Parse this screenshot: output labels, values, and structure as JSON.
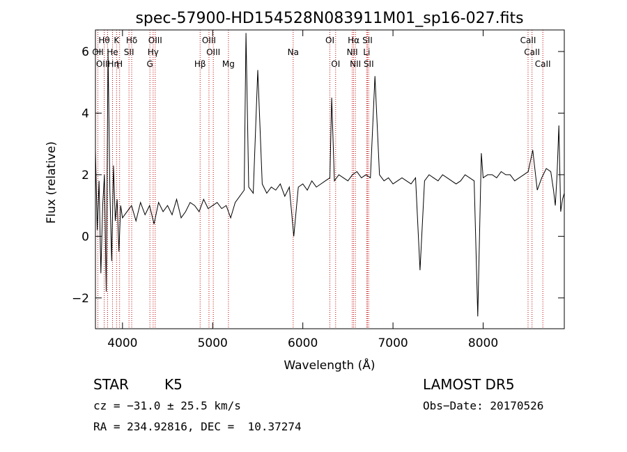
{
  "chart_data": {
    "type": "line",
    "title": "spec-57900-HD154528N083911M01_sp16-027.fits",
    "xlabel": "Wavelength (Å)",
    "ylabel": "Flux (relative)",
    "xlim": [
      3700,
      8900
    ],
    "ylim": [
      -3.0,
      6.7
    ],
    "xticks": [
      4000,
      5000,
      6000,
      7000,
      8000
    ],
    "yticks": [
      -2,
      0,
      2,
      4,
      6
    ],
    "series": [
      {
        "x": [
          3700,
          3720,
          3740,
          3760,
          3780,
          3800,
          3820,
          3840,
          3860,
          3880,
          3900,
          3920,
          3940,
          3960,
          3980,
          4000,
          4050,
          4100,
          4150,
          4200,
          4250,
          4300,
          4350,
          4400,
          4450,
          4500,
          4550,
          4600,
          4650,
          4700,
          4750,
          4800,
          4850,
          4900,
          4950,
          5000,
          5050,
          5100,
          5150,
          5200,
          5250,
          5300,
          5350,
          5370,
          5400,
          5450,
          5500,
          5550,
          5600,
          5650,
          5700,
          5750,
          5800,
          5850,
          5900,
          5950,
          6000,
          6050,
          6100,
          6150,
          6200,
          6250,
          6300,
          6320,
          6350,
          6400,
          6450,
          6500,
          6550,
          6600,
          6650,
          6700,
          6750,
          6800,
          6850,
          6900,
          6950,
          7000,
          7050,
          7100,
          7150,
          7200,
          7250,
          7300,
          7350,
          7400,
          7450,
          7500,
          7550,
          7600,
          7650,
          7700,
          7750,
          7800,
          7850,
          7900,
          7940,
          7980,
          8000,
          8050,
          8100,
          8150,
          8200,
          8250,
          8300,
          8350,
          8400,
          8450,
          8500,
          8550,
          8600,
          8650,
          8700,
          8750,
          8780,
          8800,
          8820,
          8840,
          8860,
          8880,
          8900
        ],
        "y": [
          2.8,
          0.2,
          1.8,
          -1.2,
          1.0,
          2.0,
          -1.8,
          6.0,
          1.5,
          -0.8,
          2.3,
          0.5,
          1.2,
          -0.5,
          1.0,
          0.6,
          0.8,
          1.0,
          0.5,
          1.1,
          0.7,
          1.0,
          0.4,
          1.1,
          0.8,
          1.0,
          0.7,
          1.2,
          0.6,
          0.8,
          1.1,
          1.0,
          0.8,
          1.2,
          0.9,
          1.0,
          1.1,
          0.9,
          1.0,
          0.6,
          1.1,
          1.3,
          1.5,
          6.6,
          1.6,
          1.4,
          5.4,
          1.7,
          1.4,
          1.6,
          1.5,
          1.7,
          1.3,
          1.6,
          0.0,
          1.6,
          1.7,
          1.5,
          1.8,
          1.6,
          1.7,
          1.8,
          1.9,
          4.5,
          1.8,
          2.0,
          1.9,
          1.8,
          2.0,
          2.1,
          1.9,
          2.0,
          1.9,
          5.2,
          2.0,
          1.8,
          1.9,
          1.7,
          1.8,
          1.9,
          1.8,
          1.7,
          1.9,
          -1.1,
          1.8,
          2.0,
          1.9,
          1.8,
          2.0,
          1.9,
          1.8,
          1.7,
          1.8,
          2.0,
          1.9,
          1.8,
          -2.6,
          2.7,
          1.9,
          2.0,
          2.0,
          1.9,
          2.1,
          2.0,
          2.0,
          1.8,
          1.9,
          2.0,
          2.1,
          2.8,
          1.5,
          1.9,
          2.2,
          2.1,
          1.5,
          1.0,
          2.0,
          3.6,
          0.8,
          1.2,
          1.4
        ]
      }
    ],
    "line_labels": {
      "row1": [
        {
          "text": "Hθ",
          "x": 3797
        },
        {
          "text": "K",
          "x": 3934
        },
        {
          "text": "Hδ",
          "x": 4102
        },
        {
          "text": "OIII",
          "x": 4363
        },
        {
          "text": "OIII",
          "x": 4959
        },
        {
          "text": "OI",
          "x": 6300
        },
        {
          "text": "Hα",
          "x": 6563
        },
        {
          "text": "SII",
          "x": 6717
        },
        {
          "text": "CaII",
          "x": 8498
        }
      ],
      "row2": [
        {
          "text": "OII",
          "x": 3727
        },
        {
          "text": "He",
          "x": 3889
        },
        {
          "text": "SII",
          "x": 4072
        },
        {
          "text": "Hγ",
          "x": 4340
        },
        {
          "text": "OIII",
          "x": 5007
        },
        {
          "text": "Na",
          "x": 5893
        },
        {
          "text": "NII",
          "x": 6548
        },
        {
          "text": "Li",
          "x": 6708
        },
        {
          "text": "CaII",
          "x": 8542
        }
      ],
      "row3": [
        {
          "text": "OIIHη",
          "x": 3835
        },
        {
          "text": "H",
          "x": 3968
        },
        {
          "text": "G",
          "x": 4304
        },
        {
          "text": "Hβ",
          "x": 4861
        },
        {
          "text": "Mg",
          "x": 5175
        },
        {
          "text": "OI",
          "x": 6364
        },
        {
          "text": "NII",
          "x": 6583
        },
        {
          "text": "SII",
          "x": 6731
        },
        {
          "text": "CaII",
          "x": 8662
        }
      ]
    }
  },
  "info": {
    "class_label": "STAR",
    "subclass": "K5",
    "survey": "LAMOST DR5",
    "cz_line": "cz = −31.0 ± 25.5 km/s",
    "obs_date": "Obs−Date: 20170526",
    "radec": "RA = 234.92816, DEC =  10.37274"
  },
  "colors": {
    "spectrum": "#000000",
    "line_markers": "#c00000",
    "axes": "#000000"
  }
}
